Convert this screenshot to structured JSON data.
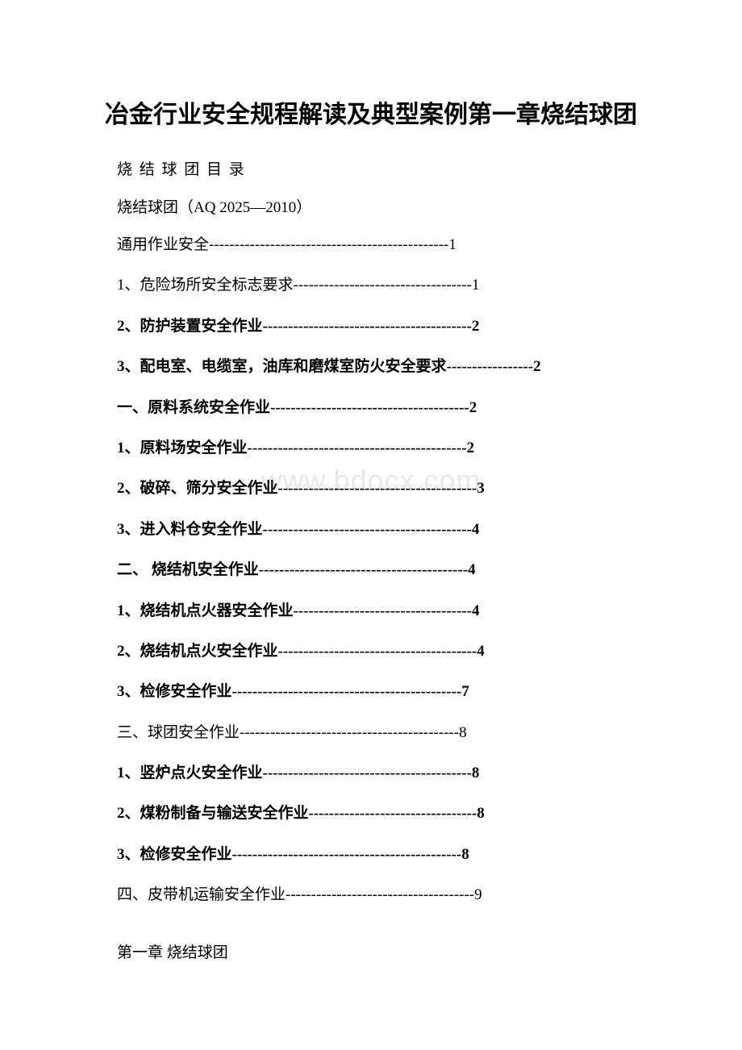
{
  "title": "冶金行业安全规程解读及典型案例第一章烧结球团",
  "subtitle1": "烧 结 球 团 目 录",
  "subtitle2": "烧结球团（AQ 2025—2010）",
  "watermark": "www.bdocx.com",
  "toc_entries": [
    {
      "text": "通用作业安全",
      "dashes": "-----------------------------------------------",
      "page": "1",
      "bold": false
    },
    {
      "text": "1、危险场所安全标志要求",
      "dashes": "-----------------------------------",
      "page": "1",
      "bold": false
    },
    {
      "text": "2、防护装置安全作业",
      "dashes": "-----------------------------------------",
      "page": "2",
      "bold": true
    },
    {
      "text": "3、配电室、电缆室，油库和磨煤室防火安全要求",
      "dashes": "-----------------",
      "page": "2",
      "bold": true
    },
    {
      "text": "一、原料系统安全作业",
      "dashes": "---------------------------------------",
      "page": "2",
      "bold": true
    },
    {
      "text": "1、原料场安全作业",
      "dashes": "-------------------------------------------",
      "page": "2",
      "bold": true
    },
    {
      "text": "2、破碎、筛分安全作业",
      "dashes": "---------------------------------------",
      "page": "3",
      "bold": true
    },
    {
      "text": "3、进入料仓安全作业",
      "dashes": "-----------------------------------------",
      "page": "4",
      "bold": true
    },
    {
      "text": "二、 烧结机安全作业",
      "dashes": "-----------------------------------------",
      "page": "4",
      "bold": true
    },
    {
      "text": "1、烧结机点火器安全作业",
      "dashes": "-----------------------------------",
      "page": "4",
      "bold": true
    },
    {
      "text": "2、烧结机点火安全作业",
      "dashes": "---------------------------------------",
      "page": "4",
      "bold": true
    },
    {
      "text": "3、检修安全作业",
      "dashes": "---------------------------------------------",
      "page": "7",
      "bold": true
    },
    {
      "text": "三、球团安全作业",
      "dashes": "-------------------------------------------",
      "page": "8",
      "bold": false
    },
    {
      "text": "1、竖炉点火安全作业",
      "dashes": "-----------------------------------------",
      "page": "8",
      "bold": true
    },
    {
      "text": "2、煤粉制备与输送安全作业",
      "dashes": "---------------------------------",
      "page": "8",
      "bold": true
    },
    {
      "text": "3、检修安全作业",
      "dashes": "---------------------------------------------",
      "page": "8",
      "bold": true
    },
    {
      "text": "四、皮带机运输安全作业",
      "dashes": "-------------------------------------",
      "page": "9",
      "bold": false
    }
  ],
  "chapter_heading": "第一章 烧结球团",
  "styling": {
    "title_fontsize": 30,
    "body_fontsize": 19,
    "title_color": "#000000",
    "text_color": "#000000",
    "watermark_color": "#e8e8e8",
    "background_color": "#ffffff",
    "font_family": "SimSun"
  }
}
